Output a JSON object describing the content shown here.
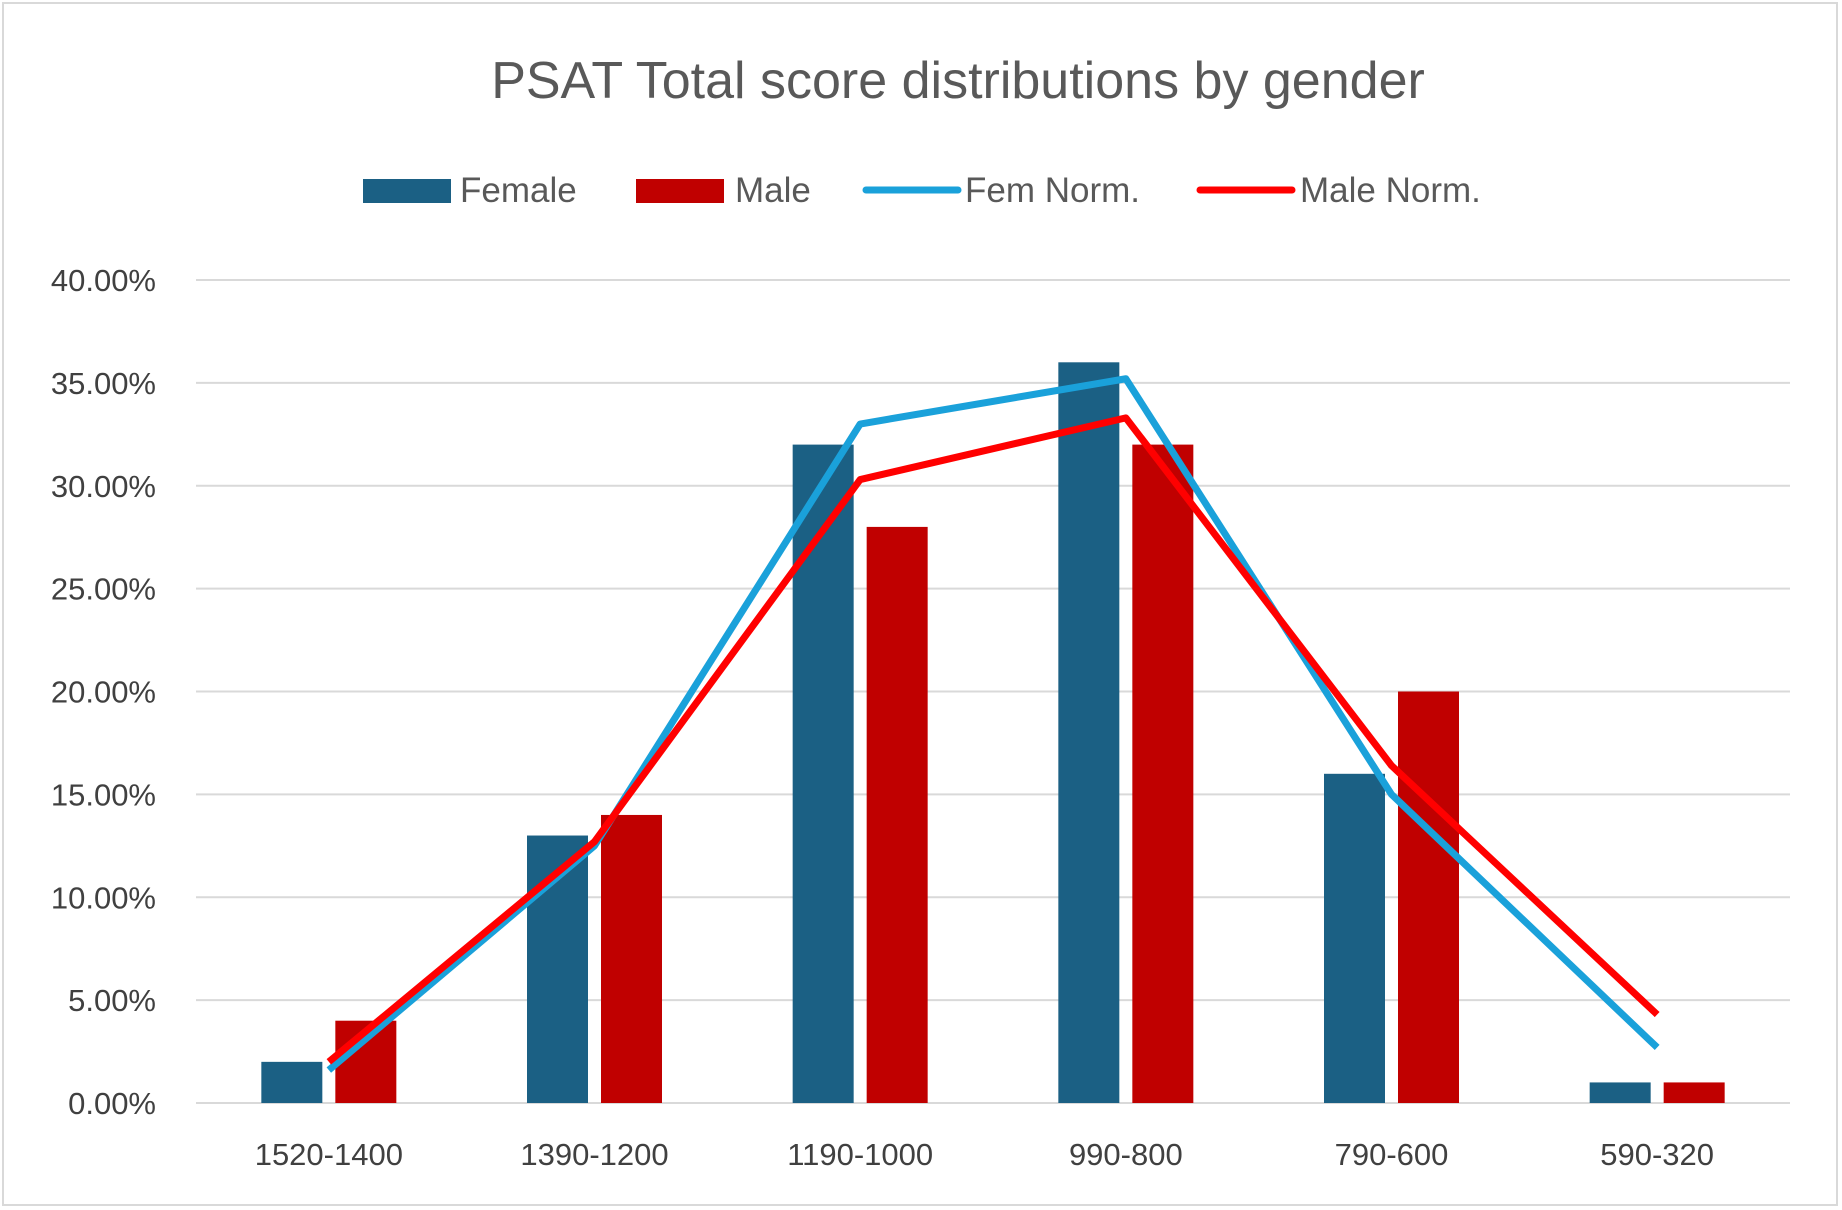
{
  "chart_data": {
    "type": "bar",
    "title": "PSAT Total score distributions by gender",
    "xlabel": "",
    "ylabel": "",
    "categories": [
      "1520-1400",
      "1390-1200",
      "1190-1000",
      "990-800",
      "790-600",
      "590-320"
    ],
    "ylim": [
      0,
      0.4
    ],
    "yticks": [
      "0.00%",
      "5.00%",
      "10.00%",
      "15.00%",
      "20.00%",
      "25.00%",
      "30.00%",
      "35.00%",
      "40.00%"
    ],
    "grid": true,
    "legend_position": "top",
    "series": [
      {
        "name": "Female",
        "kind": "bar",
        "color": "#1b6084",
        "values": [
          0.02,
          0.13,
          0.32,
          0.36,
          0.16,
          0.01
        ]
      },
      {
        "name": "Male",
        "kind": "bar",
        "color": "#c00000",
        "values": [
          0.04,
          0.14,
          0.28,
          0.32,
          0.2,
          0.01
        ]
      },
      {
        "name": "Fem Norm.",
        "kind": "line",
        "color": "#1aa1da",
        "values": [
          0.016,
          0.125,
          0.33,
          0.352,
          0.15,
          0.027
        ]
      },
      {
        "name": "Male Norm.",
        "kind": "line",
        "color": "#ff0000",
        "values": [
          0.02,
          0.127,
          0.303,
          0.333,
          0.164,
          0.043
        ]
      }
    ]
  }
}
